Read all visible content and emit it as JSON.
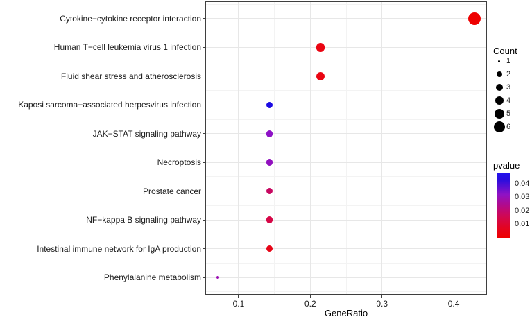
{
  "chart_data": {
    "type": "scatter",
    "xlabel": "GeneRatio",
    "xlim": [
      0.0536,
      0.4464
    ],
    "x_ticks": [
      0.1,
      0.2,
      0.3,
      0.4
    ],
    "x_tick_labels": [
      "0.1",
      "0.2",
      "0.3",
      "0.4"
    ],
    "x_minor_gridlines": [
      0.15,
      0.25,
      0.35
    ],
    "grid": true,
    "categories": [
      "Cytokine−cytokine receptor interaction",
      "Human T−cell leukemia virus 1 infection",
      "Fluid shear stress and atherosclerosis",
      "Kaposi sarcoma−associated herpesvirus infection",
      "JAK−STAT signaling pathway",
      "Necroptosis",
      "Prostate cancer",
      "NF−kappa B signaling pathway",
      "Intestinal immune network for IgA production",
      "Phenylalanine metabolism"
    ],
    "points": [
      {
        "pathway": "Cytokine−cytokine receptor interaction",
        "gene_ratio": 0.429,
        "count": 6,
        "pvalue_est": 0.001,
        "color": "#EE0000"
      },
      {
        "pathway": "Human T−cell leukemia virus 1 infection",
        "gene_ratio": 0.214,
        "count": 3,
        "pvalue_est": 0.005,
        "color": "#EA0512"
      },
      {
        "pathway": "Fluid shear stress and atherosclerosis",
        "gene_ratio": 0.214,
        "count": 3,
        "pvalue_est": 0.005,
        "color": "#EA0512"
      },
      {
        "pathway": "Kaposi sarcoma−associated herpesvirus infection",
        "gene_ratio": 0.143,
        "count": 2,
        "pvalue_est": 0.045,
        "color": "#1C0BE3"
      },
      {
        "pathway": "JAK−STAT signaling pathway",
        "gene_ratio": 0.143,
        "count": 2,
        "pvalue_est": 0.032,
        "color": "#8E12C6"
      },
      {
        "pathway": "Necroptosis",
        "gene_ratio": 0.143,
        "count": 2,
        "pvalue_est": 0.031,
        "color": "#9110BE"
      },
      {
        "pathway": "Prostate cancer",
        "gene_ratio": 0.143,
        "count": 2,
        "pvalue_est": 0.02,
        "color": "#C70861"
      },
      {
        "pathway": "NF−kappa B signaling pathway",
        "gene_ratio": 0.143,
        "count": 2,
        "pvalue_est": 0.016,
        "color": "#D60747"
      },
      {
        "pathway": "Intestinal immune network for IgA production",
        "gene_ratio": 0.143,
        "count": 2,
        "pvalue_est": 0.006,
        "color": "#E70517"
      },
      {
        "pathway": "Phenylalanine metabolism",
        "gene_ratio": 0.071,
        "count": 1,
        "pvalue_est": 0.03,
        "color": "#9A0DB2"
      }
    ],
    "legend": {
      "count": {
        "title": "Count",
        "breaks": [
          "1",
          "2",
          "3",
          "4",
          "5",
          "6"
        ]
      },
      "pvalue": {
        "title": "pvalue",
        "tick_labels": [
          "0.04",
          "0.03",
          "0.02",
          "0.01"
        ],
        "high_color": "#2313EC",
        "low_color": "#EE0000",
        "gradient_stops": [
          {
            "pos": 0.0,
            "color": "#2313EC"
          },
          {
            "pos": 0.1,
            "color": "#2A0DDE"
          },
          {
            "pos": 0.33,
            "color": "#8F12C4"
          },
          {
            "pos": 0.5,
            "color": "#B30A89"
          },
          {
            "pos": 0.62,
            "color": "#C90861"
          },
          {
            "pos": 0.73,
            "color": "#D70740"
          },
          {
            "pos": 0.88,
            "color": "#E60318"
          },
          {
            "pos": 1.0,
            "color": "#EE0000"
          }
        ],
        "legend_position": "right"
      }
    }
  }
}
